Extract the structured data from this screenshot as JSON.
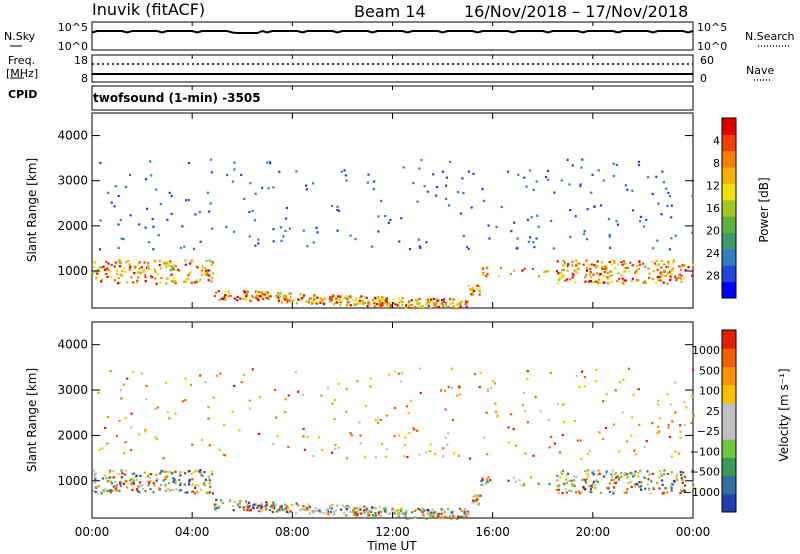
{
  "header": {
    "station": "Inuvik (fitACF)",
    "beam": "Beam 14",
    "date_range": "16/Nov/2018 – 17/Nov/2018"
  },
  "top_panels": {
    "nsky_label": "N.Sky",
    "nsky_ticks": [
      "10^5",
      "10^0"
    ],
    "nsearch_label": "N.Search",
    "nsearch_ticks": [
      "10^5",
      "10^0"
    ],
    "freq_label": "Freq.",
    "freq_unit": "[MHz]",
    "freq_ticks": [
      "18",
      "8"
    ],
    "nave_label": "Nave",
    "nave_ticks": [
      "60",
      "0"
    ],
    "cpid_label": "CPID",
    "program_label": "twofsound (1-min) -3505"
  },
  "chart_data": [
    {
      "type": "heatmap",
      "parameter": "Power",
      "ylabel": "Slant Range [km]",
      "ylim": [
        180,
        4500
      ],
      "yticks": [
        "1000",
        "2000",
        "3000",
        "4000"
      ],
      "xlim_hours": [
        0,
        24
      ],
      "colorbar": {
        "label": "Power [dB]",
        "ticks": [
          "4",
          "8",
          "12",
          "16",
          "20",
          "24",
          "28"
        ],
        "colors": [
          "#0000ff",
          "#2046d8",
          "#2f7ec0",
          "#3e9a6a",
          "#5fb041",
          "#a0c820",
          "#f0e010",
          "#f8b000",
          "#f88000",
          "#f04000",
          "#e00000"
        ]
      }
    },
    {
      "type": "heatmap",
      "parameter": "Velocity",
      "ylabel": "Slant Range [km]",
      "ylim": [
        180,
        4500
      ],
      "yticks": [
        "1000",
        "2000",
        "3000",
        "4000"
      ],
      "xlim_hours": [
        0,
        24
      ],
      "colorbar": {
        "label": "Velocity [m s⁻¹]",
        "ticks": [
          "1000",
          "500",
          "100",
          "25",
          "−25",
          "−100",
          "−500",
          "−1000"
        ],
        "colors": [
          "#2040b0",
          "#3070a0",
          "#3a9a5a",
          "#70c840",
          "#c0c0c0",
          "#c0c0c0",
          "#f8c000",
          "#f89000",
          "#f06000",
          "#e02000"
        ]
      }
    }
  ],
  "x_axis": {
    "ticks": [
      "00:00",
      "04:00",
      "08:00",
      "12:00",
      "16:00",
      "20:00",
      "00:00"
    ],
    "label": "Time UT"
  },
  "colors": {
    "black": "#000000"
  }
}
